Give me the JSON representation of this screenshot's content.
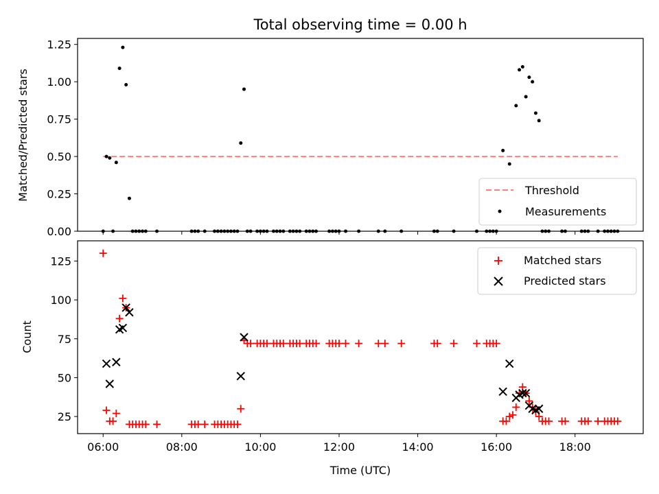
{
  "title": "Total observing time = 0.00 h",
  "colors": {
    "threshold": "#ff7f7f",
    "measurements": "#000000",
    "matched": "#ff0000",
    "predicted": "#000000"
  },
  "chart_data": [
    {
      "type": "scatter",
      "ylabel": "Matched/Predicted stars",
      "ylim": [
        0,
        1.29
      ],
      "yticks": [
        "0.00",
        "0.25",
        "0.50",
        "0.75",
        "1.00",
        "1.25"
      ],
      "legend": {
        "placement": "lower-right",
        "entries": [
          "Threshold",
          "Measurements"
        ]
      },
      "threshold": {
        "name": "Threshold",
        "x": [
          "06:00",
          "19:05"
        ],
        "y": 0.5,
        "style": "dashed"
      },
      "series": [
        {
          "name": "Measurements",
          "points": [
            [
              "06:00",
              0
            ],
            [
              "06:05",
              0.5
            ],
            [
              "06:10",
              0.49
            ],
            [
              "06:15",
              0
            ],
            [
              "06:20",
              0.46
            ],
            [
              "06:25",
              1.09
            ],
            [
              "06:30",
              1.23
            ],
            [
              "06:35",
              0.98
            ],
            [
              "06:40",
              0.22
            ],
            [
              "06:45",
              0
            ],
            [
              "06:50",
              0
            ],
            [
              "06:55",
              0
            ],
            [
              "07:00",
              0
            ],
            [
              "07:05",
              0
            ],
            [
              "07:22",
              0
            ],
            [
              "08:15",
              0
            ],
            [
              "08:20",
              0
            ],
            [
              "08:25",
              0
            ],
            [
              "08:35",
              0
            ],
            [
              "08:50",
              0
            ],
            [
              "08:55",
              0
            ],
            [
              "09:00",
              0
            ],
            [
              "09:05",
              0
            ],
            [
              "09:10",
              0
            ],
            [
              "09:15",
              0
            ],
            [
              "09:20",
              0
            ],
            [
              "09:25",
              0
            ],
            [
              "09:30",
              0.59
            ],
            [
              "09:35",
              0.95
            ],
            [
              "09:40",
              0
            ],
            [
              "09:45",
              0
            ],
            [
              "09:55",
              0
            ],
            [
              "10:00",
              0
            ],
            [
              "10:05",
              0
            ],
            [
              "10:10",
              0
            ],
            [
              "10:20",
              0
            ],
            [
              "10:25",
              0
            ],
            [
              "10:30",
              0
            ],
            [
              "10:35",
              0
            ],
            [
              "10:45",
              0
            ],
            [
              "10:50",
              0
            ],
            [
              "10:55",
              0
            ],
            [
              "11:00",
              0
            ],
            [
              "11:10",
              0
            ],
            [
              "11:15",
              0
            ],
            [
              "11:20",
              0
            ],
            [
              "11:25",
              0
            ],
            [
              "11:45",
              0
            ],
            [
              "11:50",
              0
            ],
            [
              "11:55",
              0
            ],
            [
              "12:00",
              0
            ],
            [
              "12:10",
              0
            ],
            [
              "12:30",
              0
            ],
            [
              "13:00",
              0
            ],
            [
              "13:10",
              0
            ],
            [
              "13:35",
              0
            ],
            [
              "14:25",
              0
            ],
            [
              "14:30",
              0
            ],
            [
              "14:55",
              0
            ],
            [
              "15:30",
              0
            ],
            [
              "15:45",
              0
            ],
            [
              "15:50",
              0
            ],
            [
              "15:55",
              0
            ],
            [
              "16:00",
              0
            ],
            [
              "16:10",
              0.54
            ],
            [
              "16:20",
              0.45
            ],
            [
              "16:30",
              0.84
            ],
            [
              "16:35",
              1.08
            ],
            [
              "16:40",
              1.1
            ],
            [
              "16:45",
              0.9
            ],
            [
              "16:50",
              1.03
            ],
            [
              "16:55",
              1.0
            ],
            [
              "17:00",
              0.79
            ],
            [
              "17:05",
              0.74
            ],
            [
              "17:10",
              0
            ],
            [
              "17:15",
              0
            ],
            [
              "17:20",
              0
            ],
            [
              "17:40",
              0
            ],
            [
              "17:45",
              0
            ],
            [
              "18:10",
              0
            ],
            [
              "18:15",
              0
            ],
            [
              "18:20",
              0
            ],
            [
              "18:35",
              0
            ],
            [
              "18:45",
              0
            ],
            [
              "18:50",
              0
            ],
            [
              "18:55",
              0
            ],
            [
              "19:00",
              0
            ],
            [
              "19:05",
              0
            ]
          ]
        }
      ]
    },
    {
      "type": "scatter",
      "xlabel": "Time (UTC)",
      "ylabel": "Count",
      "ylim": [
        14,
        138
      ],
      "yticks": [
        "25",
        "50",
        "75",
        "100",
        "125"
      ],
      "xticks": [
        "06:00",
        "08:00",
        "10:00",
        "12:00",
        "14:00",
        "16:00",
        "18:00"
      ],
      "xlim": [
        "05:21",
        "19:44"
      ],
      "legend": {
        "placement": "upper-right",
        "entries": [
          "Matched stars",
          "Predicted stars"
        ]
      },
      "series": [
        {
          "name": "Matched stars",
          "marker": "plus",
          "points": [
            [
              "06:00",
              130
            ],
            [
              "06:05",
              29
            ],
            [
              "06:10",
              22
            ],
            [
              "06:15",
              22
            ],
            [
              "06:20",
              27
            ],
            [
              "06:25",
              88
            ],
            [
              "06:30",
              101
            ],
            [
              "06:35",
              95
            ],
            [
              "06:40",
              20
            ],
            [
              "06:45",
              20
            ],
            [
              "06:50",
              20
            ],
            [
              "06:55",
              20
            ],
            [
              "07:00",
              20
            ],
            [
              "07:05",
              20
            ],
            [
              "07:22",
              20
            ],
            [
              "08:15",
              20
            ],
            [
              "08:20",
              20
            ],
            [
              "08:25",
              20
            ],
            [
              "08:35",
              20
            ],
            [
              "08:50",
              20
            ],
            [
              "08:55",
              20
            ],
            [
              "09:00",
              20
            ],
            [
              "09:05",
              20
            ],
            [
              "09:10",
              20
            ],
            [
              "09:15",
              20
            ],
            [
              "09:20",
              20
            ],
            [
              "09:25",
              20
            ],
            [
              "09:30",
              30
            ],
            [
              "09:35",
              74
            ],
            [
              "09:40",
              72
            ],
            [
              "09:45",
              72
            ],
            [
              "09:55",
              72
            ],
            [
              "10:00",
              72
            ],
            [
              "10:05",
              72
            ],
            [
              "10:10",
              72
            ],
            [
              "10:20",
              72
            ],
            [
              "10:25",
              72
            ],
            [
              "10:30",
              72
            ],
            [
              "10:35",
              72
            ],
            [
              "10:45",
              72
            ],
            [
              "10:50",
              72
            ],
            [
              "10:55",
              72
            ],
            [
              "11:00",
              72
            ],
            [
              "11:10",
              72
            ],
            [
              "11:15",
              72
            ],
            [
              "11:20",
              72
            ],
            [
              "11:25",
              72
            ],
            [
              "11:45",
              72
            ],
            [
              "11:50",
              72
            ],
            [
              "11:55",
              72
            ],
            [
              "12:00",
              72
            ],
            [
              "12:10",
              72
            ],
            [
              "12:30",
              72
            ],
            [
              "13:00",
              72
            ],
            [
              "13:10",
              72
            ],
            [
              "13:35",
              72
            ],
            [
              "14:25",
              72
            ],
            [
              "14:30",
              72
            ],
            [
              "14:55",
              72
            ],
            [
              "15:30",
              72
            ],
            [
              "15:45",
              72
            ],
            [
              "15:50",
              72
            ],
            [
              "15:55",
              72
            ],
            [
              "16:00",
              72
            ],
            [
              "16:10",
              22
            ],
            [
              "16:15",
              22
            ],
            [
              "16:20",
              25
            ],
            [
              "16:25",
              26
            ],
            [
              "16:30",
              31
            ],
            [
              "16:35",
              40
            ],
            [
              "16:40",
              44
            ],
            [
              "16:45",
              40
            ],
            [
              "16:50",
              35
            ],
            [
              "16:55",
              31
            ],
            [
              "17:00",
              28
            ],
            [
              "17:05",
              25
            ],
            [
              "17:10",
              22
            ],
            [
              "17:15",
              22
            ],
            [
              "17:20",
              22
            ],
            [
              "17:40",
              22
            ],
            [
              "17:45",
              22
            ],
            [
              "18:10",
              22
            ],
            [
              "18:15",
              22
            ],
            [
              "18:20",
              22
            ],
            [
              "18:35",
              22
            ],
            [
              "18:45",
              22
            ],
            [
              "18:50",
              22
            ],
            [
              "18:55",
              22
            ],
            [
              "19:00",
              22
            ],
            [
              "19:05",
              22
            ]
          ]
        },
        {
          "name": "Predicted stars",
          "marker": "x",
          "points": [
            [
              "06:05",
              59
            ],
            [
              "06:10",
              46
            ],
            [
              "06:20",
              60
            ],
            [
              "06:25",
              81
            ],
            [
              "06:30",
              82
            ],
            [
              "06:35",
              95
            ],
            [
              "06:40",
              92
            ],
            [
              "09:30",
              51
            ],
            [
              "09:35",
              76
            ],
            [
              "16:10",
              41
            ],
            [
              "16:20",
              59
            ],
            [
              "16:30",
              37
            ],
            [
              "16:35",
              39
            ],
            [
              "16:40",
              40
            ],
            [
              "16:45",
              40
            ],
            [
              "16:50",
              32
            ],
            [
              "16:55",
              30
            ],
            [
              "17:00",
              29
            ],
            [
              "17:05",
              30
            ]
          ]
        }
      ]
    }
  ]
}
